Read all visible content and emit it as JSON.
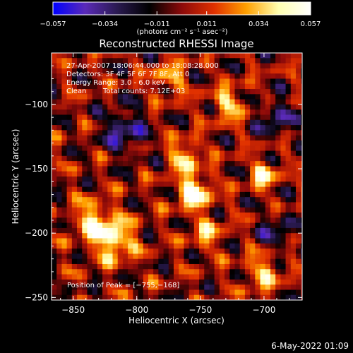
{
  "chart_data": {
    "type": "heatmap",
    "title": "Reconstructed RHESSI Image",
    "xlabel": "Heliocentric X (arcsec)",
    "ylabel": "Heliocentric Y (arcsec)",
    "xlim": [
      -867,
      -670
    ],
    "ylim": [
      -252,
      -60
    ],
    "xticks": [
      -850,
      -800,
      -750,
      -700
    ],
    "xtick_labels": [
      "−850",
      "−800",
      "−750",
      "−700"
    ],
    "yticks": [
      -100,
      -150,
      -200,
      -250
    ],
    "ytick_labels": [
      "−100",
      "−150",
      "−200",
      "−250"
    ],
    "colorbar": {
      "min": -0.057,
      "max": 0.057,
      "ticks": [
        -0.057,
        -0.034,
        -0.011,
        0.011,
        0.034,
        0.057
      ],
      "tick_labels": [
        "−0.057",
        "−0.034",
        "−0.011",
        "0.011",
        "0.034",
        "0.057"
      ],
      "units": "(photons cm⁻² s⁻¹ asec⁻²)",
      "colors": [
        "#0000ff",
        "#5a2ab8",
        "#2a1a50",
        "#000000",
        "#8c0a0a",
        "#e03000",
        "#ffa000",
        "#ffffb0",
        "#ffffff"
      ]
    },
    "annotations": {
      "time_range": "27-Apr-2007 18:06:44.000 to 18:08:28.000",
      "detectors": "Detectors: 3F 4F 5F 6F 7F 8F, Att 0",
      "energy": "Energy Range: 3.0 - 6.0 keV",
      "clean": "Clean",
      "total_counts": "Total counts: 7.12E+03",
      "peak": "Position of Peak = [−755,−168]"
    },
    "peak_position": [
      -755,
      -168
    ],
    "sources": [
      {
        "x": -755,
        "y": -168,
        "amp": 0.057,
        "sigma": 9
      },
      {
        "x": -762,
        "y": -140,
        "amp": 0.042,
        "sigma": 8
      },
      {
        "x": -818,
        "y": -205,
        "amp": 0.05,
        "sigma": 11
      },
      {
        "x": -835,
        "y": -190,
        "amp": 0.04,
        "sigma": 10
      },
      {
        "x": -700,
        "y": -155,
        "amp": 0.045,
        "sigma": 7
      },
      {
        "x": -728,
        "y": -100,
        "amp": 0.035,
        "sigma": 9
      },
      {
        "x": -775,
        "y": -80,
        "amp": 0.03,
        "sigma": 9
      },
      {
        "x": -700,
        "y": -230,
        "amp": 0.032,
        "sigma": 10
      },
      {
        "x": -745,
        "y": -200,
        "amp": 0.028,
        "sigma": 9
      },
      {
        "x": -810,
        "y": -120,
        "amp": -0.035,
        "sigma": 12
      },
      {
        "x": -690,
        "y": -110,
        "amp": -0.03,
        "sigma": 10
      },
      {
        "x": -690,
        "y": -200,
        "amp": -0.025,
        "sigma": 10
      }
    ]
  },
  "footer": {
    "date": "6-May-2022 01:09"
  }
}
